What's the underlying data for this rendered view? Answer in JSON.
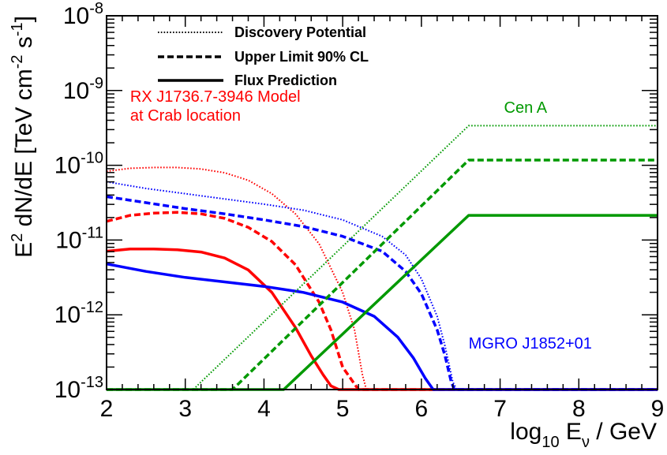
{
  "chart_data": {
    "type": "line",
    "xlabel": {
      "main": "log",
      "sub": "10",
      "e": " E",
      "nu": "ν",
      "unit": " / GeV"
    },
    "ylabel": {
      "pre": "E",
      "sup2": "2",
      "mid": " dN/dE [TeV cm",
      "supneg2": "-2",
      "s": " s",
      "supneg1": "-1",
      "close": "]"
    },
    "xlim": [
      2,
      9
    ],
    "ylim_log10": [
      -13,
      -8
    ],
    "log_y": true,
    "grid": false,
    "x_tick_labels": [
      "2",
      "3",
      "4",
      "5",
      "6",
      "7",
      "8",
      "9"
    ],
    "y_tick_labels": [
      {
        "base": "10",
        "exp": "-13"
      },
      {
        "base": "10",
        "exp": "-12"
      },
      {
        "base": "10",
        "exp": "-11"
      },
      {
        "base": "10",
        "exp": "-10"
      },
      {
        "base": "10",
        "exp": "-9"
      },
      {
        "base": "10",
        "exp": "-8"
      }
    ],
    "legend": {
      "placement": "top-center",
      "entries": [
        {
          "label": "Discovery Potential",
          "style": "dotted"
        },
        {
          "label": "Upper Limit 90% CL",
          "style": "dashed"
        },
        {
          "label": "Flux Prediction",
          "style": "solid"
        }
      ]
    },
    "annotations": [
      {
        "lines": [
          "RX J1736.7-3946 Model",
          "at Crab location"
        ],
        "color": "#ff0000",
        "x": 2.3,
        "y_log10": -9.15
      },
      {
        "lines": [
          "Cen A"
        ],
        "color": "#009900",
        "x": 7.05,
        "y_log10": -9.3
      },
      {
        "lines": [
          "MGRO J1852+01"
        ],
        "color": "#0000ff",
        "x": 6.6,
        "y_log10": -12.45
      }
    ],
    "series": [
      {
        "group": "RX J1736.7-3946",
        "kind": "Discovery Potential",
        "color": "#ff0000",
        "style": "dotted",
        "x": [
          2.0,
          2.3,
          2.6,
          2.9,
          3.2,
          3.5,
          3.8,
          4.1,
          4.4,
          4.7,
          5.0,
          5.15,
          5.25,
          5.3,
          5.4,
          9.0
        ],
        "y_log10": [
          -10.08,
          -10.04,
          -10.03,
          -10.03,
          -10.05,
          -10.1,
          -10.2,
          -10.38,
          -10.65,
          -11.05,
          -11.7,
          -12.2,
          -12.8,
          -13,
          -13,
          -13
        ]
      },
      {
        "group": "RX J1736.7-3946",
        "kind": "Upper Limit 90% CL",
        "color": "#ff0000",
        "style": "dashed",
        "x": [
          2.0,
          2.3,
          2.6,
          2.9,
          3.2,
          3.5,
          3.8,
          4.1,
          4.4,
          4.7,
          4.85,
          5.0,
          5.2,
          5.3,
          9.0
        ],
        "y_log10": [
          -10.75,
          -10.67,
          -10.64,
          -10.63,
          -10.65,
          -10.71,
          -10.83,
          -11.02,
          -11.33,
          -11.83,
          -12.2,
          -12.7,
          -13,
          -13,
          -13
        ]
      },
      {
        "group": "RX J1736.7-3946",
        "kind": "Flux Prediction",
        "color": "#ff0000",
        "style": "solid",
        "x": [
          2.0,
          2.3,
          2.6,
          2.9,
          3.2,
          3.5,
          3.8,
          4.1,
          4.4,
          4.6,
          4.75,
          4.85,
          4.95,
          5.0,
          9.0
        ],
        "y_log10": [
          -11.15,
          -11.12,
          -11.12,
          -11.13,
          -11.16,
          -11.24,
          -11.4,
          -11.7,
          -12.17,
          -12.55,
          -12.8,
          -12.95,
          -13,
          -13,
          -13
        ]
      },
      {
        "group": "MGRO J1852+01",
        "kind": "Discovery Potential",
        "color": "#0000ff",
        "style": "dotted",
        "x": [
          2.0,
          2.5,
          3.0,
          3.5,
          4.0,
          4.5,
          5.0,
          5.5,
          5.8,
          6.0,
          6.2,
          6.3,
          6.4,
          6.45,
          9.0
        ],
        "y_log10": [
          -10.22,
          -10.31,
          -10.38,
          -10.45,
          -10.52,
          -10.6,
          -10.73,
          -10.95,
          -11.2,
          -11.52,
          -12.02,
          -12.42,
          -12.9,
          -13,
          -13
        ]
      },
      {
        "group": "MGRO J1852+01",
        "kind": "Upper Limit 90% CL",
        "color": "#0000ff",
        "style": "dashed",
        "x": [
          2.0,
          2.5,
          3.0,
          3.5,
          4.0,
          4.5,
          5.0,
          5.5,
          5.8,
          6.0,
          6.2,
          6.3,
          6.38,
          6.42,
          9.0
        ],
        "y_log10": [
          -10.42,
          -10.5,
          -10.58,
          -10.65,
          -10.73,
          -10.82,
          -10.95,
          -11.15,
          -11.42,
          -11.72,
          -12.2,
          -12.55,
          -12.9,
          -13,
          -13
        ]
      },
      {
        "group": "MGRO J1852+01",
        "kind": "Flux Prediction",
        "color": "#0000ff",
        "style": "solid",
        "x": [
          2.0,
          2.5,
          3.0,
          3.5,
          4.0,
          4.5,
          5.0,
          5.4,
          5.7,
          5.9,
          6.05,
          6.15,
          6.2,
          9.0
        ],
        "y_log10": [
          -11.32,
          -11.42,
          -11.5,
          -11.56,
          -11.62,
          -11.7,
          -11.83,
          -12.02,
          -12.3,
          -12.58,
          -12.85,
          -13,
          -13,
          -13
        ]
      },
      {
        "group": "Cen A",
        "kind": "Discovery Potential",
        "color": "#009900",
        "style": "dotted",
        "x": [
          2.0,
          3.1,
          6.6,
          9.0
        ],
        "y_log10": [
          -13,
          -13,
          -9.47,
          -9.47
        ]
      },
      {
        "group": "Cen A",
        "kind": "Upper Limit 90% CL",
        "color": "#009900",
        "style": "dashed",
        "x": [
          2.0,
          3.6,
          6.6,
          9.0
        ],
        "y_log10": [
          -13,
          -13,
          -9.93,
          -9.93
        ]
      },
      {
        "group": "Cen A",
        "kind": "Flux Prediction",
        "color": "#009900",
        "style": "solid",
        "x": [
          2.0,
          4.25,
          6.6,
          9.0
        ],
        "y_log10": [
          -13,
          -13,
          -10.67,
          -10.67
        ]
      }
    ]
  }
}
